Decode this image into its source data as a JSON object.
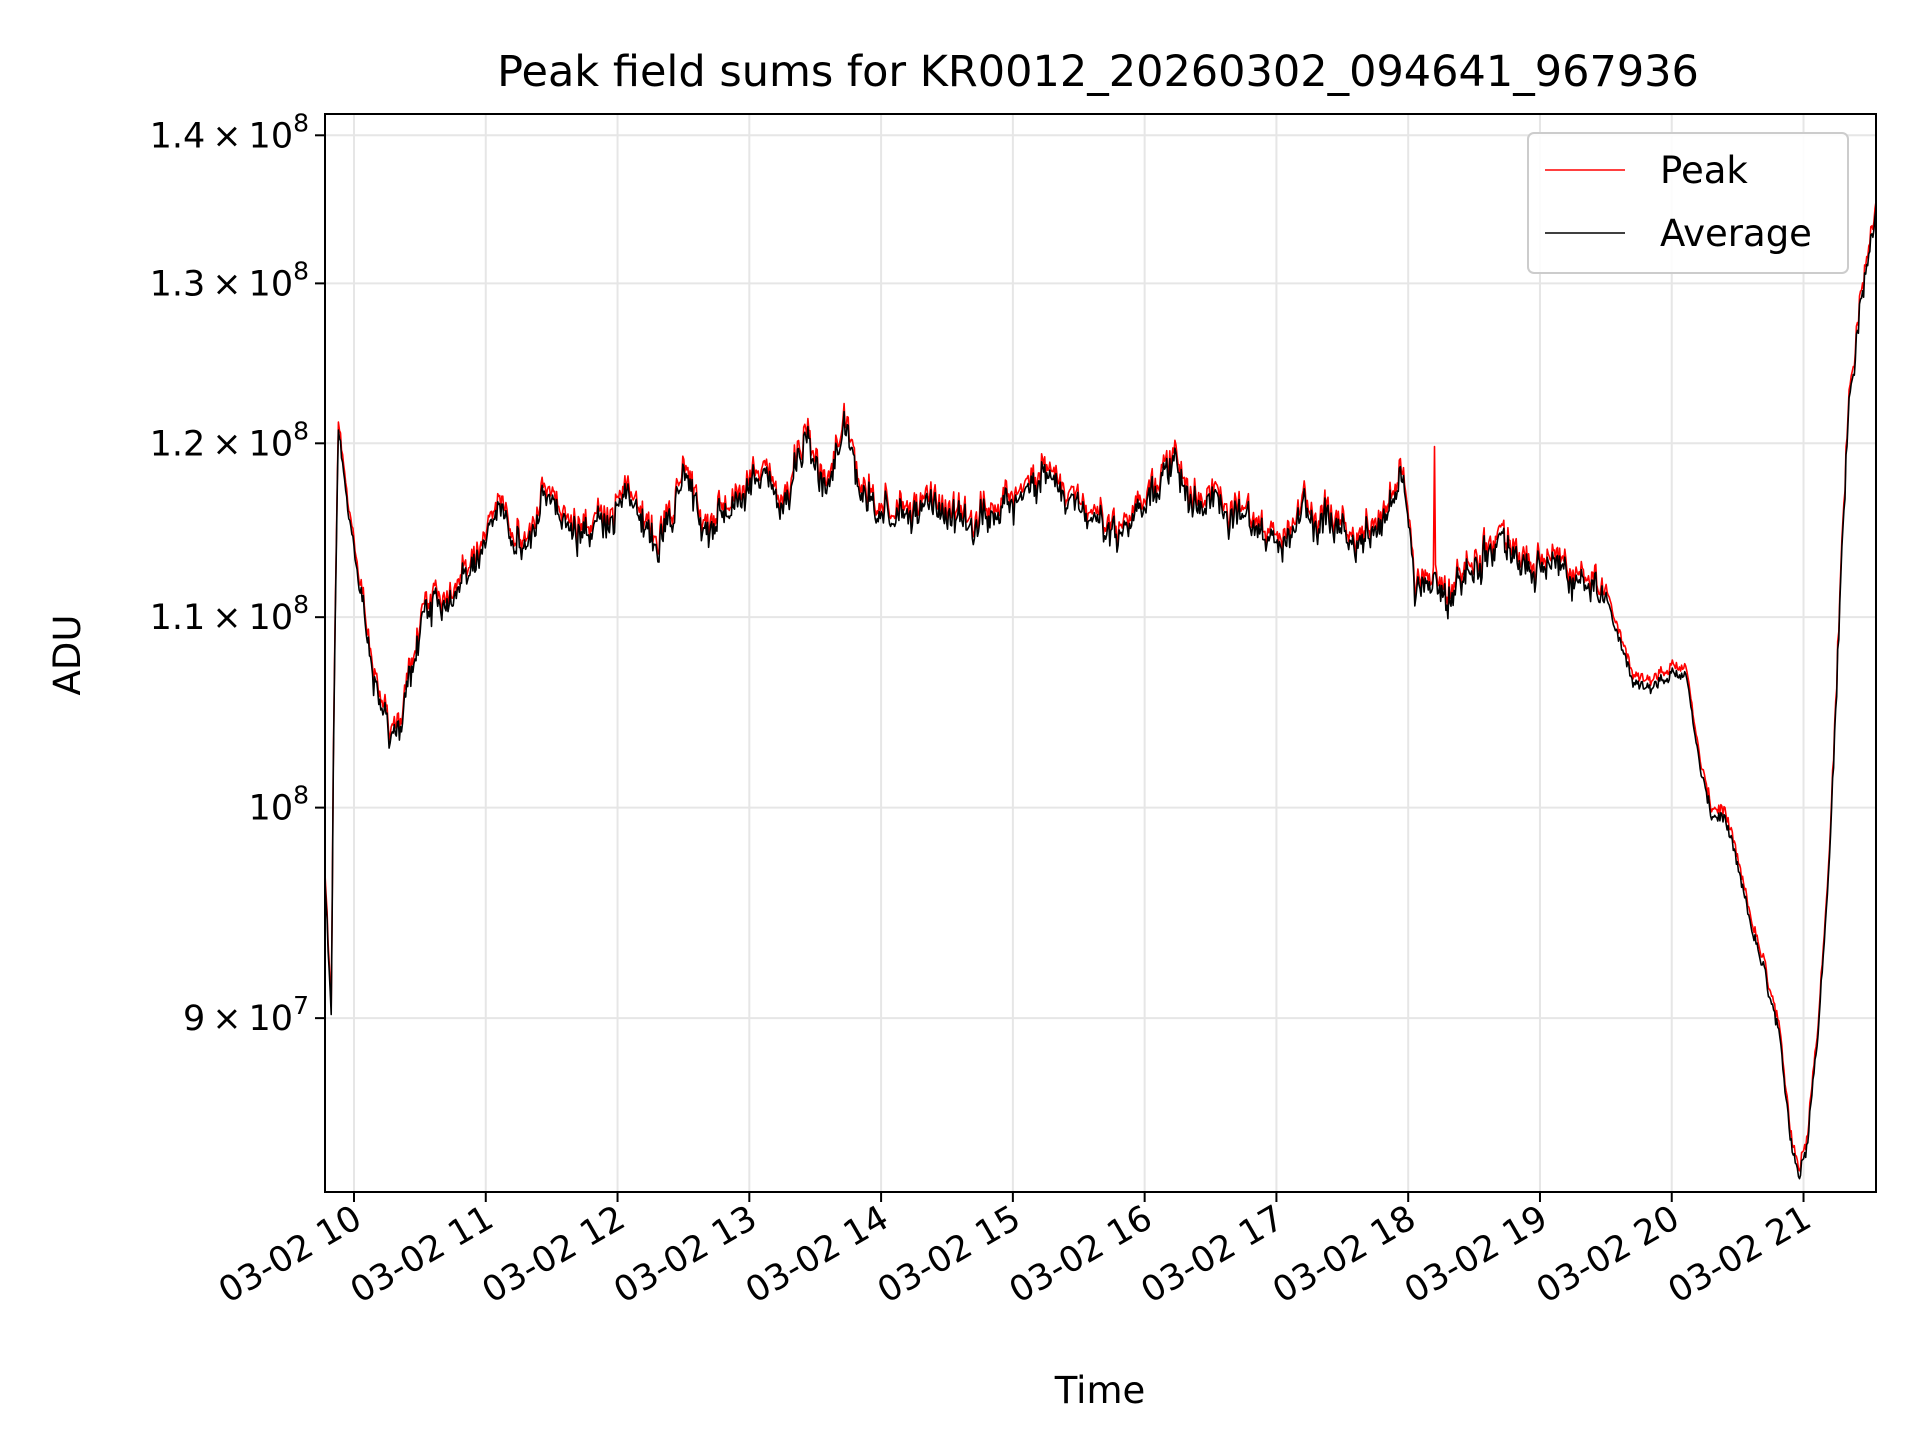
{
  "chart_data": {
    "type": "line",
    "title": "Peak field sums for KR0012_20260302_094641_967936",
    "xlabel": "Time",
    "ylabel": "ADU",
    "yscale": "log",
    "ylim": [
      82500000,
      141500000
    ],
    "xlim": [
      9.78,
      21.55
    ],
    "grid": true,
    "legend_loc": "upper right",
    "x_ticks": [
      {
        "value": 10,
        "label": "03-02 10"
      },
      {
        "value": 11,
        "label": "03-02 11"
      },
      {
        "value": 12,
        "label": "03-02 12"
      },
      {
        "value": 13,
        "label": "03-02 13"
      },
      {
        "value": 14,
        "label": "03-02 14"
      },
      {
        "value": 15,
        "label": "03-02 15"
      },
      {
        "value": 16,
        "label": "03-02 16"
      },
      {
        "value": 17,
        "label": "03-02 17"
      },
      {
        "value": 18,
        "label": "03-02 18"
      },
      {
        "value": 19,
        "label": "03-02 19"
      },
      {
        "value": 20,
        "label": "03-02 20"
      },
      {
        "value": 21,
        "label": "03-02 21"
      }
    ],
    "y_ticks": [
      {
        "value": 90000000,
        "mantissa": "9",
        "exponent": "7"
      },
      {
        "value": 100000000,
        "mantissa": "",
        "exponent": "8"
      },
      {
        "value": 110000000,
        "mantissa": "1.1",
        "exponent": "8"
      },
      {
        "value": 120000000,
        "mantissa": "1.2",
        "exponent": "8"
      },
      {
        "value": 130000000,
        "mantissa": "1.3",
        "exponent": "8"
      },
      {
        "value": 140000000,
        "mantissa": "1.4",
        "exponent": "8"
      }
    ],
    "anchors": [
      [
        9.78,
        96.5
      ],
      [
        9.83,
        90.0
      ],
      [
        9.84,
        101.0
      ],
      [
        9.88,
        121.0
      ],
      [
        9.95,
        116.5
      ],
      [
        10.02,
        112.5
      ],
      [
        10.1,
        109.0
      ],
      [
        10.2,
        105.5
      ],
      [
        10.28,
        103.0
      ],
      [
        10.38,
        105.0
      ],
      [
        10.45,
        108.0
      ],
      [
        10.6,
        110.5
      ],
      [
        10.75,
        111.0
      ],
      [
        10.95,
        112.5
      ],
      [
        11.1,
        116.5
      ],
      [
        11.3,
        113.5
      ],
      [
        11.5,
        117.0
      ],
      [
        11.7,
        114.5
      ],
      [
        11.9,
        115.0
      ],
      [
        12.1,
        116.5
      ],
      [
        12.3,
        114.0
      ],
      [
        12.5,
        117.5
      ],
      [
        12.7,
        114.5
      ],
      [
        12.9,
        116.0
      ],
      [
        13.1,
        118.0
      ],
      [
        13.3,
        116.0
      ],
      [
        13.45,
        120.5
      ],
      [
        13.6,
        116.5
      ],
      [
        13.72,
        121.0
      ],
      [
        13.85,
        116.5
      ],
      [
        14.0,
        116.0
      ],
      [
        14.2,
        115.5
      ],
      [
        14.4,
        116.0
      ],
      [
        14.6,
        115.0
      ],
      [
        14.8,
        116.0
      ],
      [
        15.0,
        115.5
      ],
      [
        15.2,
        118.5
      ],
      [
        15.4,
        116.0
      ],
      [
        15.6,
        115.5
      ],
      [
        15.8,
        115.0
      ],
      [
        16.0,
        116.5
      ],
      [
        16.2,
        118.5
      ],
      [
        16.4,
        116.5
      ],
      [
        16.6,
        115.5
      ],
      [
        16.8,
        116.0
      ],
      [
        17.0,
        114.0
      ],
      [
        17.2,
        116.0
      ],
      [
        17.4,
        115.0
      ],
      [
        17.6,
        114.0
      ],
      [
        17.8,
        115.0
      ],
      [
        17.95,
        118.0
      ],
      [
        18.05,
        112.0
      ],
      [
        18.3,
        111.0
      ],
      [
        18.5,
        112.5
      ],
      [
        18.7,
        114.5
      ],
      [
        18.9,
        112.5
      ],
      [
        19.1,
        113.0
      ],
      [
        19.3,
        112.0
      ],
      [
        19.45,
        112.5
      ],
      [
        19.55,
        110.0
      ],
      [
        19.7,
        106.5
      ],
      [
        19.85,
        106.0
      ],
      [
        20.0,
        107.0
      ],
      [
        20.12,
        106.5
      ],
      [
        20.2,
        102.5
      ],
      [
        20.3,
        99.5
      ],
      [
        20.4,
        99.5
      ],
      [
        20.55,
        95.5
      ],
      [
        20.7,
        92.0
      ],
      [
        20.8,
        89.5
      ],
      [
        20.9,
        85.0
      ],
      [
        20.97,
        83.2
      ],
      [
        21.02,
        84.5
      ],
      [
        21.12,
        90.0
      ],
      [
        21.2,
        98.0
      ],
      [
        21.28,
        112.0
      ],
      [
        21.35,
        123.0
      ],
      [
        21.43,
        128.0
      ],
      [
        21.5,
        132.0
      ],
      [
        21.55,
        136.0
      ]
    ],
    "series": [
      {
        "name": "Peak",
        "color": "#ff0000",
        "offset": 0.004,
        "spikes": [
          {
            "x": 18.2,
            "y": 119.8
          }
        ]
      },
      {
        "name": "Average",
        "color": "#000000",
        "offset": 0.0,
        "spikes": []
      }
    ],
    "value_unit": 1000000
  }
}
